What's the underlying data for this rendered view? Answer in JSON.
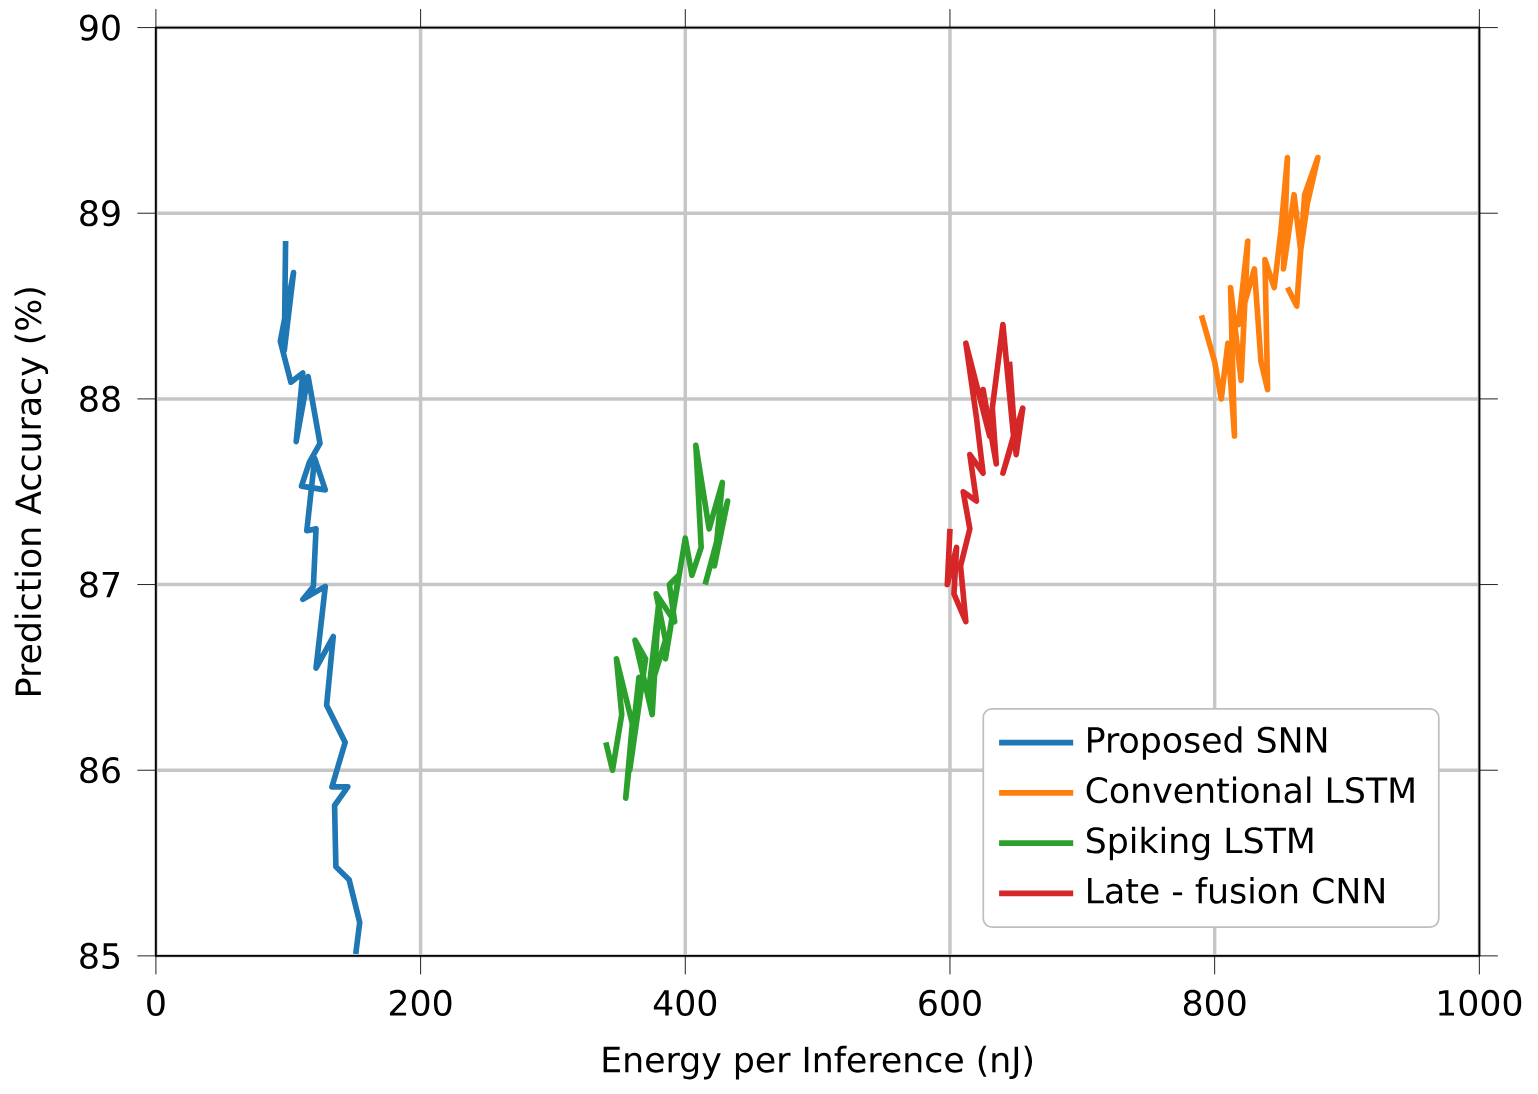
{
  "chart_data": {
    "type": "line",
    "xlabel": "Energy per Inference (nJ)",
    "ylabel": "Prediction Accuracy (%)",
    "xlim": [
      0,
      1000
    ],
    "ylim": [
      85,
      90
    ],
    "xticks": [
      0,
      200,
      400,
      600,
      800,
      1000
    ],
    "yticks": [
      85,
      86,
      87,
      88,
      89,
      90
    ],
    "grid": true,
    "legend": "bottom right",
    "marker": "none",
    "line_style": "solid",
    "series": [
      {
        "name": "Proposed SNN",
        "color": "#1f77b4",
        "x": [
          98,
          97,
          104,
          94,
          102,
          111,
          106,
          115,
          124,
          116,
          110,
          128,
          120,
          114,
          121,
          119,
          111,
          128,
          121,
          134,
          129,
          143,
          133,
          145,
          135,
          136,
          146,
          154,
          151
        ],
        "values": [
          88.85,
          88.26,
          88.68,
          88.31,
          88.09,
          88.14,
          87.77,
          88.12,
          87.76,
          87.66,
          87.53,
          87.51,
          87.68,
          87.29,
          87.3,
          86.99,
          86.92,
          86.99,
          86.55,
          86.72,
          86.35,
          86.15,
          85.91,
          85.91,
          85.81,
          85.48,
          85.41,
          85.18,
          85.01
        ]
      },
      {
        "name": "Conventional LSTM",
        "color": "#ff7f0e",
        "x": [
          790,
          800,
          805,
          810,
          815,
          812,
          820,
          825,
          818,
          830,
          835,
          840,
          838,
          845,
          850,
          855,
          852,
          860,
          865,
          870,
          878,
          868,
          862,
          855
        ],
        "values": [
          88.45,
          88.2,
          88.0,
          88.3,
          87.8,
          88.6,
          88.1,
          88.85,
          88.4,
          88.7,
          88.2,
          88.05,
          88.75,
          88.6,
          88.9,
          89.3,
          88.7,
          89.1,
          88.8,
          89.05,
          89.3,
          89.1,
          88.5,
          88.6
        ]
      },
      {
        "name": "Spiking LSTM",
        "color": "#2ca02c",
        "x": [
          340,
          345,
          352,
          348,
          360,
          355,
          365,
          358,
          370,
          362,
          375,
          380,
          372,
          385,
          378,
          392,
          388,
          395,
          385,
          400,
          405,
          412,
          408,
          418,
          428,
          422,
          432,
          415
        ],
        "values": [
          86.15,
          86.0,
          86.3,
          86.6,
          86.25,
          85.85,
          86.5,
          86.0,
          86.6,
          86.7,
          86.3,
          86.9,
          86.4,
          86.7,
          86.95,
          86.8,
          87.0,
          87.05,
          86.6,
          87.25,
          87.05,
          87.2,
          87.75,
          87.3,
          87.55,
          87.1,
          87.45,
          87.0
        ]
      },
      {
        "name": "Late - fusion CNN",
        "color": "#d62728",
        "x": [
          600,
          598,
          605,
          603,
          612,
          608,
          615,
          610,
          620,
          615,
          625,
          620,
          612,
          630,
          625,
          635,
          632,
          640,
          648,
          640,
          655,
          650,
          645
        ],
        "values": [
          87.3,
          87.0,
          87.2,
          86.95,
          86.8,
          87.1,
          87.3,
          87.5,
          87.45,
          87.7,
          87.6,
          87.9,
          88.3,
          87.8,
          88.05,
          87.65,
          87.95,
          88.4,
          87.8,
          87.6,
          87.95,
          87.7,
          88.2
        ]
      }
    ]
  }
}
